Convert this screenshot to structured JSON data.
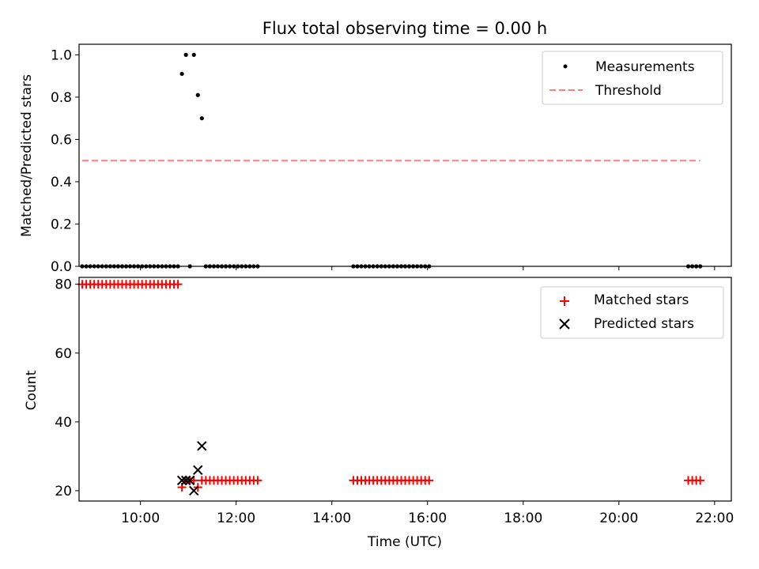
{
  "chart_data": [
    {
      "type": "scatter",
      "title": "Flux total observing time = 0.00 h",
      "xlabel": "",
      "ylabel": "Matched/Predicted stars",
      "xlim": [
        "08:43",
        "22:21"
      ],
      "ylim": [
        0,
        1.05
      ],
      "yticks": [
        "0.0",
        "0.2",
        "0.4",
        "0.6",
        "0.8",
        "1.0"
      ],
      "x_tick_labels": [],
      "legend": "top-right",
      "grid": false,
      "series": [
        {
          "name": "Measurements",
          "kind": "scatter",
          "marker": "dot",
          "color": "#000000",
          "points": [
            [
              "08:47",
              0
            ],
            [
              "08:52",
              0
            ],
            [
              "08:57",
              0
            ],
            [
              "09:02",
              0
            ],
            [
              "09:07",
              0
            ],
            [
              "09:12",
              0
            ],
            [
              "09:17",
              0
            ],
            [
              "09:22",
              0
            ],
            [
              "09:27",
              0
            ],
            [
              "09:32",
              0
            ],
            [
              "09:37",
              0
            ],
            [
              "09:42",
              0
            ],
            [
              "09:47",
              0
            ],
            [
              "09:52",
              0
            ],
            [
              "09:57",
              0
            ],
            [
              "10:02",
              0
            ],
            [
              "10:07",
              0
            ],
            [
              "10:12",
              0
            ],
            [
              "10:17",
              0
            ],
            [
              "10:22",
              0
            ],
            [
              "10:27",
              0
            ],
            [
              "10:32",
              0
            ],
            [
              "10:37",
              0
            ],
            [
              "10:42",
              0
            ],
            [
              "10:47",
              0
            ],
            [
              "10:52",
              0.91
            ],
            [
              "10:57",
              1.0
            ],
            [
              "11:02",
              0.0
            ],
            [
              "11:07",
              1.0
            ],
            [
              "11:12",
              0.81
            ],
            [
              "11:17",
              0.7
            ],
            [
              "11:22",
              0
            ],
            [
              "11:27",
              0
            ],
            [
              "11:32",
              0
            ],
            [
              "11:37",
              0
            ],
            [
              "11:42",
              0
            ],
            [
              "11:47",
              0
            ],
            [
              "11:52",
              0
            ],
            [
              "11:57",
              0
            ],
            [
              "12:02",
              0
            ],
            [
              "12:07",
              0
            ],
            [
              "12:12",
              0
            ],
            [
              "12:17",
              0
            ],
            [
              "12:22",
              0
            ],
            [
              "12:27",
              0
            ],
            [
              "14:27",
              0
            ],
            [
              "14:32",
              0
            ],
            [
              "14:37",
              0
            ],
            [
              "14:42",
              0
            ],
            [
              "14:47",
              0
            ],
            [
              "14:52",
              0
            ],
            [
              "14:57",
              0
            ],
            [
              "15:02",
              0
            ],
            [
              "15:07",
              0
            ],
            [
              "15:12",
              0
            ],
            [
              "15:17",
              0
            ],
            [
              "15:22",
              0
            ],
            [
              "15:27",
              0
            ],
            [
              "15:32",
              0
            ],
            [
              "15:37",
              0
            ],
            [
              "15:42",
              0
            ],
            [
              "15:47",
              0
            ],
            [
              "15:52",
              0
            ],
            [
              "15:57",
              0
            ],
            [
              "16:02",
              0
            ],
            [
              "21:27",
              0
            ],
            [
              "21:32",
              0
            ],
            [
              "21:37",
              0
            ],
            [
              "21:42",
              0
            ]
          ]
        },
        {
          "name": "Threshold",
          "kind": "line",
          "style": "dashed",
          "color": "#ff7f7f",
          "points": [
            [
              "08:47",
              0.5
            ],
            [
              "21:42",
              0.5
            ]
          ]
        }
      ]
    },
    {
      "type": "scatter",
      "title": "",
      "xlabel": "Time (UTC)",
      "ylabel": "Count",
      "xlim": [
        "08:43",
        "22:21"
      ],
      "ylim": [
        17,
        82
      ],
      "yticks": [
        "20",
        "40",
        "60",
        "80"
      ],
      "x_tick_labels": [
        "10:00",
        "12:00",
        "14:00",
        "16:00",
        "18:00",
        "20:00",
        "22:00"
      ],
      "legend": "top-right",
      "grid": false,
      "series": [
        {
          "name": "Matched stars",
          "kind": "scatter",
          "marker": "plus",
          "color": "#ff0000",
          "points": [
            [
              "08:47",
              80
            ],
            [
              "08:52",
              80
            ],
            [
              "08:57",
              80
            ],
            [
              "09:02",
              80
            ],
            [
              "09:07",
              80
            ],
            [
              "09:12",
              80
            ],
            [
              "09:17",
              80
            ],
            [
              "09:22",
              80
            ],
            [
              "09:27",
              80
            ],
            [
              "09:32",
              80
            ],
            [
              "09:37",
              80
            ],
            [
              "09:42",
              80
            ],
            [
              "09:47",
              80
            ],
            [
              "09:52",
              80
            ],
            [
              "09:57",
              80
            ],
            [
              "10:02",
              80
            ],
            [
              "10:07",
              80
            ],
            [
              "10:12",
              80
            ],
            [
              "10:17",
              80
            ],
            [
              "10:22",
              80
            ],
            [
              "10:27",
              80
            ],
            [
              "10:32",
              80
            ],
            [
              "10:37",
              80
            ],
            [
              "10:42",
              80
            ],
            [
              "10:47",
              80
            ],
            [
              "10:52",
              21
            ],
            [
              "10:57",
              23
            ],
            [
              "11:02",
              23
            ],
            [
              "11:07",
              23
            ],
            [
              "11:12",
              21
            ],
            [
              "11:17",
              23
            ],
            [
              "11:22",
              23
            ],
            [
              "11:27",
              23
            ],
            [
              "11:32",
              23
            ],
            [
              "11:37",
              23
            ],
            [
              "11:42",
              23
            ],
            [
              "11:47",
              23
            ],
            [
              "11:52",
              23
            ],
            [
              "11:57",
              23
            ],
            [
              "12:02",
              23
            ],
            [
              "12:07",
              23
            ],
            [
              "12:12",
              23
            ],
            [
              "12:17",
              23
            ],
            [
              "12:22",
              23
            ],
            [
              "12:27",
              23
            ],
            [
              "14:27",
              23
            ],
            [
              "14:32",
              23
            ],
            [
              "14:37",
              23
            ],
            [
              "14:42",
              23
            ],
            [
              "14:47",
              23
            ],
            [
              "14:52",
              23
            ],
            [
              "14:57",
              23
            ],
            [
              "15:02",
              23
            ],
            [
              "15:07",
              23
            ],
            [
              "15:12",
              23
            ],
            [
              "15:17",
              23
            ],
            [
              "15:22",
              23
            ],
            [
              "15:27",
              23
            ],
            [
              "15:32",
              23
            ],
            [
              "15:37",
              23
            ],
            [
              "15:42",
              23
            ],
            [
              "15:47",
              23
            ],
            [
              "15:52",
              23
            ],
            [
              "15:57",
              23
            ],
            [
              "16:02",
              23
            ],
            [
              "21:27",
              23
            ],
            [
              "21:32",
              23
            ],
            [
              "21:37",
              23
            ],
            [
              "21:42",
              23
            ]
          ]
        },
        {
          "name": "Predicted stars",
          "kind": "scatter",
          "marker": "x",
          "color": "#000000",
          "points": [
            [
              "10:52",
              23
            ],
            [
              "10:57",
              23
            ],
            [
              "11:02",
              23
            ],
            [
              "11:07",
              20
            ],
            [
              "11:12",
              26
            ],
            [
              "11:17",
              33
            ]
          ]
        }
      ]
    }
  ]
}
